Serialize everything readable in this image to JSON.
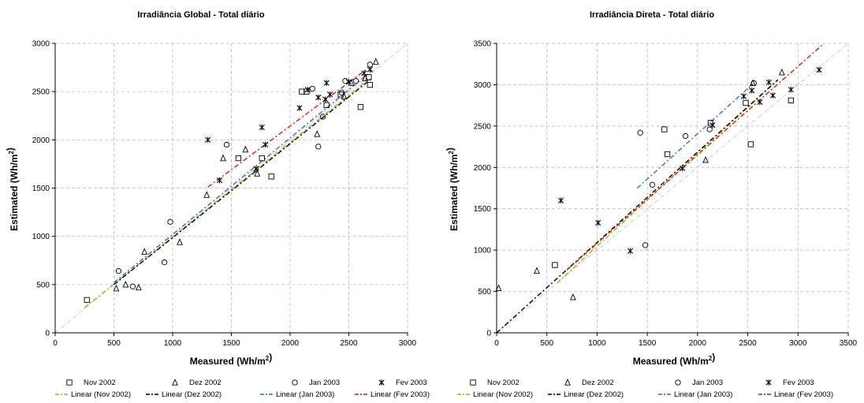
{
  "colors": {
    "Linear (Nov 2002)": "#99bb00",
    "Linear (Dez 2002)": "#000000",
    "Linear (Jan 2003)": "#3366dd",
    "Linear (Fev 2003)": "#dd1111",
    "identity": "#bbbbbb",
    "grid": "#b0b0b0"
  },
  "chart_data": [
    {
      "type": "scatter",
      "title": "Irradiância Global - Total diário",
      "xlabel": "Measured (Wh/m²)",
      "ylabel": "Estimated (Wh/m²)",
      "xlim": [
        0,
        3000
      ],
      "ylim": [
        0,
        3000
      ],
      "xticks": [
        0,
        500,
        1000,
        1500,
        2000,
        2500,
        3000
      ],
      "yticks": [
        0,
        500,
        1000,
        1500,
        2000,
        2500,
        3000
      ],
      "grid": true,
      "legend_position": "bottom",
      "series": [
        {
          "name": "Nov 2002",
          "marker": "square",
          "x": [
            270,
            1560,
            1760,
            1840,
            2100,
            2140,
            2310,
            2430,
            2600,
            2680,
            2670
          ],
          "y": [
            340,
            1810,
            1810,
            1620,
            2500,
            2500,
            2360,
            2470,
            2340,
            2570,
            2650
          ]
        },
        {
          "name": "Dez 2002",
          "marker": "triangle",
          "x": [
            520,
            600,
            710,
            760,
            1060,
            1290,
            1430,
            1620,
            1720,
            2230,
            2460,
            2520,
            2640,
            2730
          ],
          "y": [
            460,
            500,
            470,
            840,
            940,
            1430,
            1810,
            1900,
            1650,
            2060,
            2450,
            2590,
            2640,
            2810
          ],
          "labels": []
        },
        {
          "name": "Jan 2003",
          "marker": "circle",
          "x": [
            540,
            660,
            930,
            980,
            1460,
            2190,
            2240,
            2280,
            2440,
            2470,
            2560,
            2680
          ],
          "y": [
            640,
            480,
            730,
            1150,
            1950,
            2530,
            1930,
            2240,
            2490,
            2610,
            2610,
            2780
          ]
        },
        {
          "name": "Fev 2003",
          "marker": "star",
          "x": [
            1300,
            1400,
            1710,
            1760,
            1790,
            2080,
            2150,
            2240,
            2300,
            2310,
            2340,
            2500,
            2630,
            2680
          ],
          "y": [
            2000,
            1580,
            1700,
            2130,
            1950,
            2330,
            2520,
            2440,
            2420,
            2590,
            2470,
            2600,
            2690,
            2730
          ]
        }
      ],
      "trendlines": [
        {
          "name": "Linear (Nov 2002)",
          "x": [
            250,
            2650
          ],
          "y": [
            260,
            2610
          ]
        },
        {
          "name": "Linear (Dez 2002)",
          "x": [
            500,
            2700
          ],
          "y": [
            500,
            2640
          ]
        },
        {
          "name": "Linear (Jan 2003)",
          "x": [
            500,
            2700
          ],
          "y": [
            520,
            2720
          ]
        },
        {
          "name": "Linear (Fev 2003)",
          "x": [
            1300,
            2650
          ],
          "y": [
            1510,
            2730
          ]
        }
      ]
    },
    {
      "type": "scatter",
      "title": "Irradiância Direta - Total diário",
      "xlabel": "Measured (Wh/m²)",
      "ylabel": "Estimated (Wh/m²)",
      "xlim": [
        0,
        3500
      ],
      "ylim": [
        0,
        3500
      ],
      "xticks": [
        0,
        500,
        1000,
        1500,
        2000,
        2500,
        3000,
        3500
      ],
      "yticks": [
        0,
        500,
        1000,
        1500,
        2000,
        2500,
        3000,
        3500
      ],
      "grid": true,
      "legend_position": "bottom",
      "series": [
        {
          "name": "Nov 2002",
          "marker": "square",
          "x": [
            580,
            1670,
            1700,
            2130,
            2480,
            2530,
            2930
          ],
          "y": [
            820,
            2460,
            2160,
            2540,
            2780,
            2280,
            2810
          ]
        },
        {
          "name": "Dez 2002",
          "marker": "triangle",
          "x": [
            20,
            400,
            760,
            2080,
            2550,
            2840
          ],
          "y": [
            540,
            750,
            430,
            2090,
            3020,
            3150
          ]
        },
        {
          "name": "Jan 2003",
          "marker": "circle",
          "x": [
            1430,
            1480,
            1550,
            1880,
            2120,
            2560
          ],
          "y": [
            2420,
            1060,
            1790,
            2380,
            2460,
            3020
          ]
        },
        {
          "name": "Fev 2003",
          "marker": "star",
          "x": [
            640,
            1010,
            1330,
            1850,
            2150,
            2460,
            2540,
            2620,
            2710,
            2750,
            2930,
            3210
          ],
          "y": [
            1600,
            1330,
            990,
            1990,
            2510,
            2860,
            2930,
            2790,
            3030,
            2870,
            2940,
            3180
          ]
        }
      ],
      "trendlines": [
        {
          "name": "Linear (Nov 2002)",
          "x": [
            600,
            2800
          ],
          "y": [
            600,
            3060
          ]
        },
        {
          "name": "Linear (Dez 2002)",
          "x": [
            0,
            2800
          ],
          "y": [
            0,
            3060
          ]
        },
        {
          "name": "Linear (Jan 2003)",
          "x": [
            1400,
            2550
          ],
          "y": [
            1750,
            3010
          ]
        },
        {
          "name": "Linear (Fev 2003)",
          "x": [
            700,
            3250
          ],
          "y": [
            760,
            3490
          ]
        }
      ]
    }
  ]
}
